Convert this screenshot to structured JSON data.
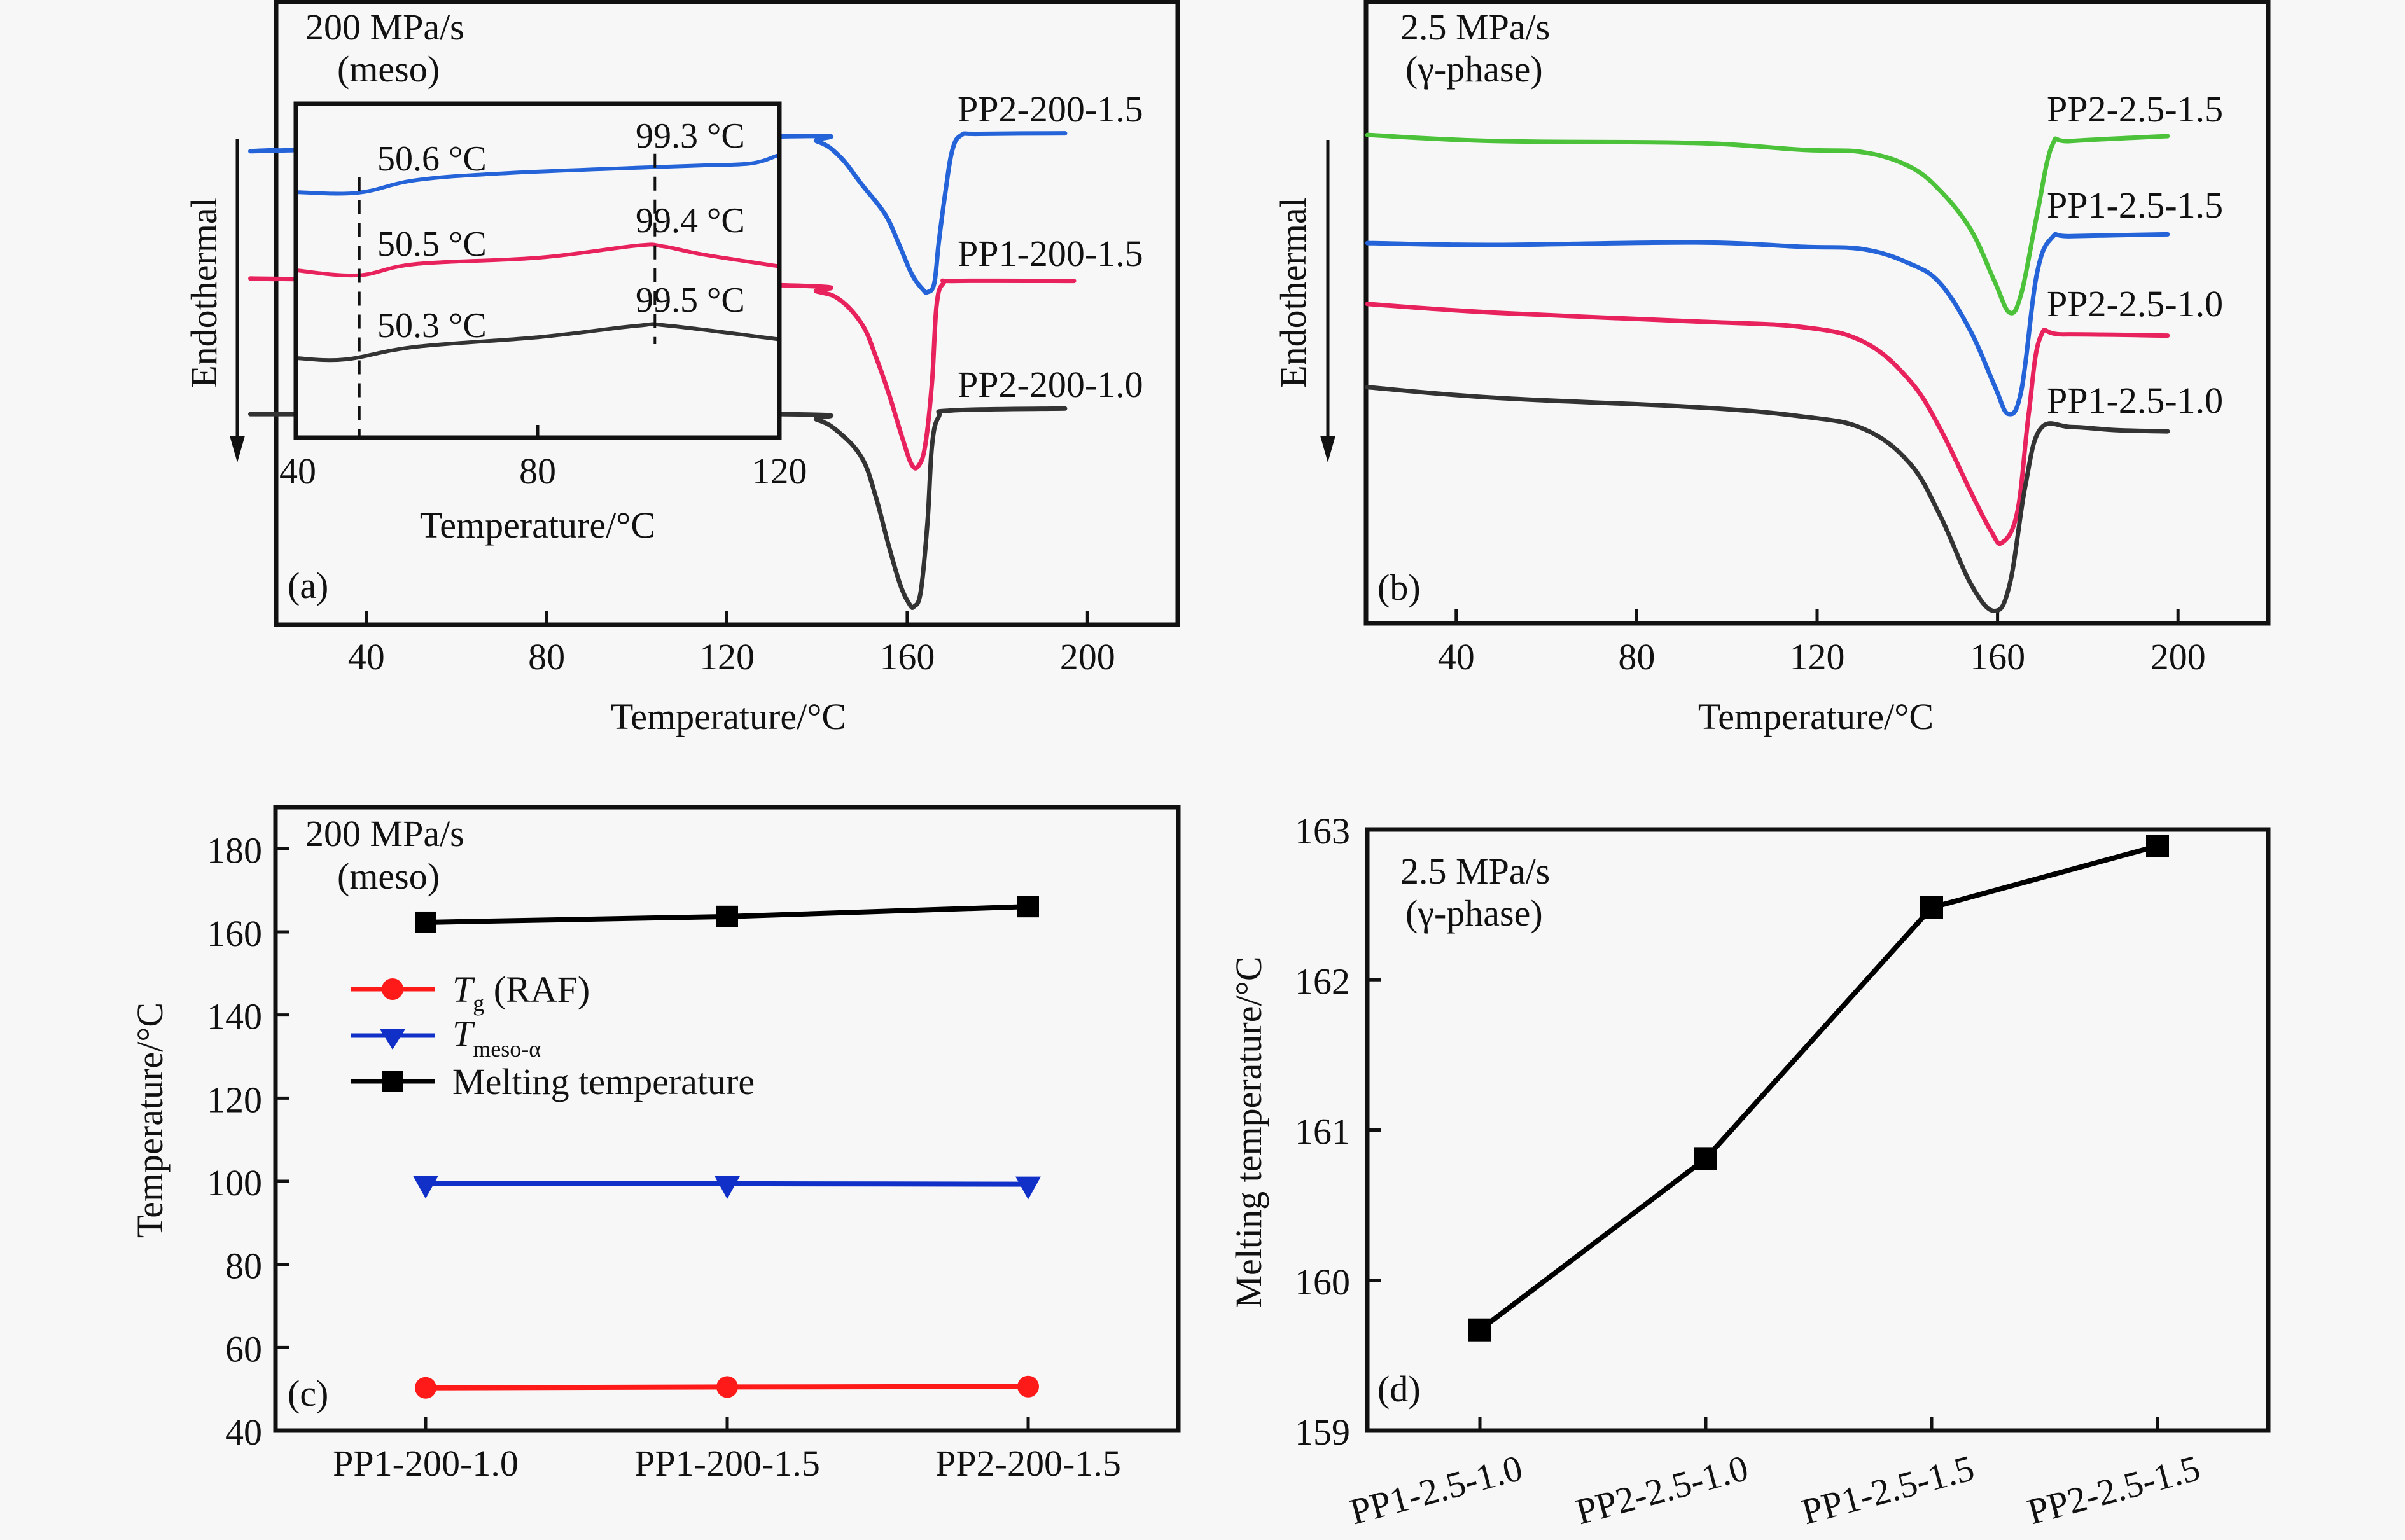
{
  "figure": {
    "panels": [
      "(a)",
      "(b)",
      "(c)",
      "(d)"
    ]
  },
  "chart_data": [
    {
      "id": "a",
      "type": "line",
      "panel_label": "(a)",
      "annotation_lines": [
        "200 MPa/s",
        "(meso)"
      ],
      "xlabel": "Temperature/°C",
      "ylabel": "Endothermal",
      "ylabel_arrow": "down",
      "xlim": [
        20,
        220
      ],
      "xticks": [
        40,
        80,
        120,
        160,
        200
      ],
      "ylim_au": [
        0,
        100
      ],
      "y_units": "heat flow (a.u., offset)",
      "colors": {
        "PP2-200-1.5": "#2463d8",
        "PP1-200-1.5": "#e8225c",
        "PP2-200-1.0": "#333333"
      },
      "series": [
        {
          "name": "PP2-200-1.5",
          "color": "#2463d8",
          "points": [
            [
              20,
              76.2
            ],
            [
              24.3,
              76.2
            ],
            [
              132,
              78.4
            ],
            [
              140,
              77.6
            ],
            [
              145,
              75.2
            ],
            [
              150,
              70.6
            ],
            [
              155,
              66.0
            ],
            [
              158,
              61.4
            ],
            [
              161,
              56.3
            ],
            [
              163.5,
              53.8
            ],
            [
              164.5,
              53.4
            ],
            [
              166,
              54.8
            ],
            [
              167,
              61.4
            ],
            [
              168.5,
              69.6
            ],
            [
              170,
              76.2
            ],
            [
              172,
              78.6
            ],
            [
              176,
              78.8
            ],
            [
              195,
              78.9
            ]
          ]
        },
        {
          "name": "PP1-200-1.5",
          "color": "#e8225c",
          "points": [
            [
              20,
              55.5
            ],
            [
              24.3,
              55.5
            ],
            [
              132,
              54.5
            ],
            [
              140,
              53.5
            ],
            [
              145,
              52.2
            ],
            [
              150,
              48.2
            ],
            [
              153,
              43.1
            ],
            [
              156,
              36.9
            ],
            [
              159,
              29.8
            ],
            [
              161,
              25.7
            ],
            [
              162.5,
              25.5
            ],
            [
              164,
              28.8
            ],
            [
              165.5,
              39.0
            ],
            [
              166.5,
              51.2
            ],
            [
              168,
              54.8
            ],
            [
              171,
              55.2
            ],
            [
              197,
              55.2
            ]
          ]
        },
        {
          "name": "PP2-200-1.0",
          "color": "#333333",
          "points": [
            [
              20,
              33.8
            ],
            [
              24.3,
              33.8
            ],
            [
              132,
              33.8
            ],
            [
              140,
              32.9
            ],
            [
              145,
              30.8
            ],
            [
              150,
              26.7
            ],
            [
              153,
              20.6
            ],
            [
              156,
              12.4
            ],
            [
              158.5,
              6.3
            ],
            [
              160.5,
              3.3
            ],
            [
              161.5,
              2.9
            ],
            [
              163,
              5.3
            ],
            [
              164.5,
              16.5
            ],
            [
              165.5,
              28.8
            ],
            [
              167,
              33.4
            ],
            [
              170,
              34.4
            ],
            [
              195,
              34.7
            ]
          ]
        }
      ],
      "inset": {
        "xlabel": "Temperature/°C",
        "xlim": [
          40,
          120
        ],
        "xticks": [
          40,
          80,
          120
        ],
        "ylim_au": [
          0,
          100
        ],
        "series": [
          {
            "name": "PP2-200-1.5",
            "color": "#2463d8",
            "points": [
              [
                40.1,
                73.5
              ],
              [
                50.2,
                73.3
              ],
              [
                59.9,
                77.1
              ],
              [
                74.9,
                79.2
              ],
              [
                99.2,
                81.0
              ],
              [
                107.2,
                81.5
              ],
              [
                115.3,
                82.1
              ],
              [
                119.6,
                84.4
              ]
            ]
          },
          {
            "name": "PP1-200-1.5",
            "color": "#e8225c",
            "points": [
              [
                40.1,
                50.1
              ],
              [
                50.2,
                48.6
              ],
              [
                59.9,
                52.0
              ],
              [
                80.3,
                53.9
              ],
              [
                96.4,
                57.5
              ],
              [
                100.7,
                57.3
              ],
              [
                107.2,
                54.9
              ],
              [
                119.6,
                51.4
              ]
            ]
          },
          {
            "name": "PP2-200-1.0",
            "color": "#333333",
            "points": [
              [
                40.1,
                23.8
              ],
              [
                48.1,
                23.4
              ],
              [
                59.9,
                27.2
              ],
              [
                80.3,
                30.1
              ],
              [
                96.4,
                33.5
              ],
              [
                101.8,
                33.5
              ],
              [
                119.6,
                29.5
              ]
            ]
          }
        ],
        "dashed_lines": [
          {
            "x": 50.5,
            "y_au": [
              0,
              78
            ]
          },
          {
            "x": 99.4,
            "y_au": [
              28,
              85
            ]
          }
        ],
        "annotations": [
          {
            "text": "50.6 °C",
            "series": "PP2-200-1.5"
          },
          {
            "text": "99.3 °C",
            "series": "PP2-200-1.5"
          },
          {
            "text": "50.5 °C",
            "series": "PP1-200-1.5"
          },
          {
            "text": "99.4 °C",
            "series": "PP1-200-1.5"
          },
          {
            "text": "50.3 °C",
            "series": "PP2-200-1.0"
          },
          {
            "text": "99.5 °C",
            "series": "PP2-200-1.0"
          }
        ]
      }
    },
    {
      "id": "b",
      "type": "line",
      "panel_label": "(b)",
      "annotation_lines": [
        "2.5 MPa/s",
        "(γ-phase)"
      ],
      "xlabel": "Temperature/°C",
      "ylabel": "Endothermal",
      "ylabel_arrow": "down",
      "xlim": [
        20,
        220
      ],
      "xticks": [
        40,
        80,
        120,
        160,
        200
      ],
      "ylim_au": [
        0,
        100
      ],
      "y_units": "heat flow (a.u., offset)",
      "series": [
        {
          "name": "PP2-2.5-1.5",
          "color": "#4cc23a",
          "points": [
            [
              20.3,
              78.6
            ],
            [
              48.4,
              77.6
            ],
            [
              92.7,
              77.3
            ],
            [
              116.6,
              76.2
            ],
            [
              130.3,
              75.8
            ],
            [
              140.5,
              73.5
            ],
            [
              147.3,
              69.6
            ],
            [
              154.1,
              63.3
            ],
            [
              159.3,
              55.1
            ],
            [
              162.7,
              50.0
            ],
            [
              165.3,
              53.2
            ],
            [
              168.7,
              65.6
            ],
            [
              172.1,
              76.9
            ],
            [
              176.3,
              77.6
            ],
            [
              197.7,
              78.4
            ]
          ]
        },
        {
          "name": "PP1-2.5-1.5",
          "color": "#2463d8",
          "points": [
            [
              20.3,
              61.2
            ],
            [
              48.4,
              60.9
            ],
            [
              92.7,
              61.3
            ],
            [
              116.6,
              60.6
            ],
            [
              130.3,
              60.2
            ],
            [
              140.5,
              57.9
            ],
            [
              147.3,
              54.7
            ],
            [
              154.1,
              46.9
            ],
            [
              159.3,
              38.3
            ],
            [
              162.4,
              33.7
            ],
            [
              165.3,
              37.6
            ],
            [
              168.7,
              56.2
            ],
            [
              172.1,
              62.1
            ],
            [
              176.3,
              62.3
            ],
            [
              197.7,
              62.6
            ]
          ]
        },
        {
          "name": "PP2-2.5-1.0",
          "color": "#e8225c",
          "points": [
            [
              20.3,
              51.4
            ],
            [
              48.4,
              50.0
            ],
            [
              92.7,
              48.6
            ],
            [
              116.6,
              47.7
            ],
            [
              130.3,
              45.3
            ],
            [
              140.5,
              39.1
            ],
            [
              147.3,
              31.3
            ],
            [
              154.1,
              21.1
            ],
            [
              158.5,
              14.9
            ],
            [
              161.0,
              13.0
            ],
            [
              164.4,
              18.0
            ],
            [
              166.9,
              33.7
            ],
            [
              169.5,
              46.1
            ],
            [
              174.6,
              46.5
            ],
            [
              197.7,
              46.3
            ]
          ]
        },
        {
          "name": "PP1-2.5-1.0",
          "color": "#333333",
          "points": [
            [
              20.3,
              38.0
            ],
            [
              48.4,
              36.3
            ],
            [
              92.7,
              34.8
            ],
            [
              116.6,
              33.3
            ],
            [
              130.3,
              31.3
            ],
            [
              140.5,
              25.8
            ],
            [
              147.3,
              17.3
            ],
            [
              154.1,
              6.3
            ],
            [
              159.3,
              2.0
            ],
            [
              162.7,
              6.3
            ],
            [
              166.1,
              21.9
            ],
            [
              169.5,
              31.3
            ],
            [
              176.3,
              31.6
            ],
            [
              186.5,
              31.1
            ],
            [
              197.7,
              30.9
            ]
          ]
        }
      ]
    },
    {
      "id": "c",
      "type": "line",
      "panel_label": "(c)",
      "annotation_lines": [
        "200 MPa/s",
        "(meso)"
      ],
      "xlabel": "",
      "ylabel": "Temperature/°C",
      "categories": [
        "PP1-200-1.0",
        "PP1-200-1.5",
        "PP2-200-1.5"
      ],
      "ylim": [
        40,
        190
      ],
      "yticks": [
        40,
        60,
        80,
        100,
        120,
        140,
        160,
        180
      ],
      "legend_position": "center-left",
      "series": [
        {
          "name": "Tg (RAF)",
          "legend_main": "T",
          "legend_sub": "g",
          "legend_rest": " (RAF)",
          "color": "#ff1a1a",
          "marker": "circle",
          "values": [
            50.3,
            50.5,
            50.6
          ]
        },
        {
          "name": "Tmeso-α",
          "legend_main": "T",
          "legend_sub": "meso-α",
          "legend_rest": "",
          "color": "#1030c8",
          "marker": "triangle-down",
          "values": [
            99.5,
            99.4,
            99.3
          ]
        },
        {
          "name": "Melting temperature",
          "legend_main": "Melting temperature",
          "legend_sub": "",
          "legend_rest": "",
          "color": "#000000",
          "marker": "square",
          "values": [
            162.3,
            163.7,
            166.1
          ]
        }
      ]
    },
    {
      "id": "d",
      "type": "line",
      "panel_label": "(d)",
      "annotation_lines": [
        "2.5 MPa/s",
        "(γ-phase)"
      ],
      "xlabel": "",
      "ylabel": "Melting temperature/°C",
      "categories": [
        "PP1-2.5-1.0",
        "PP2-2.5-1.0",
        "PP1-2.5-1.5",
        "PP2-2.5-1.5"
      ],
      "ylim": [
        159,
        163
      ],
      "yticks": [
        159,
        160,
        161,
        162,
        163
      ],
      "series": [
        {
          "name": "Melting temperature",
          "color": "#000000",
          "marker": "square",
          "values": [
            159.67,
            160.81,
            162.48,
            162.89
          ]
        }
      ]
    }
  ]
}
